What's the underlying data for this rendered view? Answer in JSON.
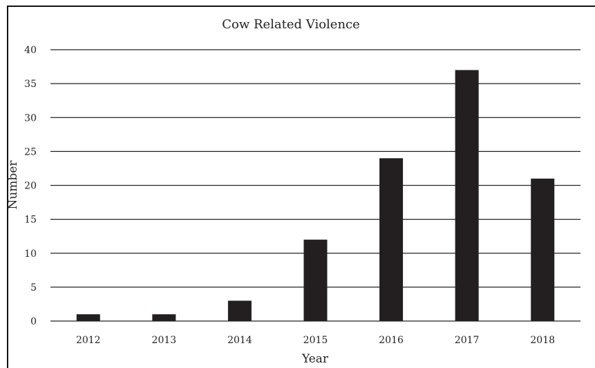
{
  "chart_data": {
    "type": "bar",
    "title": "Cow Related Violence",
    "xlabel": "Year",
    "ylabel": "Number",
    "categories": [
      "2012",
      "2013",
      "2014",
      "2015",
      "2016",
      "2017",
      "2018"
    ],
    "values": [
      1,
      1,
      3,
      12,
      24,
      37,
      21
    ],
    "ylim": [
      0,
      40
    ],
    "yticks": [
      "0",
      "5",
      "10",
      "15",
      "20",
      "25",
      "30",
      "35",
      "40"
    ],
    "grid": true,
    "legend": "none",
    "bar_color": "#231f20"
  }
}
